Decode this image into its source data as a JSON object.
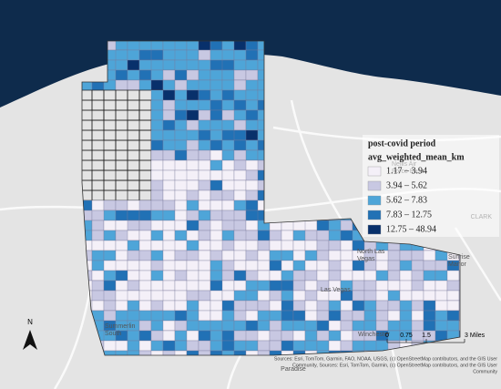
{
  "legend": {
    "title": "post-covid period",
    "field": "avg_weighted_mean_km",
    "classes": [
      {
        "label": "1.17 – 3.94",
        "color": "#f4f0f8"
      },
      {
        "label": "3.94 – 5.62",
        "color": "#c8c8e2"
      },
      {
        "label": "5.62 – 7.83",
        "color": "#4ea5d8"
      },
      {
        "label": "7.83 – 12.75",
        "color": "#2171b5"
      },
      {
        "label": "12.75 – 48.94",
        "color": "#08306b"
      }
    ]
  },
  "places": [
    {
      "lines": [
        "Nellis Air",
        "Force Base"
      ]
    },
    {
      "lines": [
        "North Las",
        "Vegas"
      ]
    },
    {
      "lines": [
        "Sunrise",
        "Manor"
      ]
    },
    {
      "lines": [
        "Las Vegas"
      ]
    },
    {
      "lines": [
        "Winchester"
      ]
    },
    {
      "lines": [
        "Paradise"
      ]
    },
    {
      "lines": [
        "Summerlin",
        "South"
      ]
    },
    {
      "lines": [
        "CLARK"
      ]
    }
  ],
  "north": "N",
  "scale": [
    "0",
    "0.75",
    "1.5",
    "3 Miles"
  ],
  "attribution": [
    "Sources: Esri, TomTom, Garmin, FAO, NOAA, USGS, (c) OpenStreetMap contributors, and the GIS User",
    "Community, Sources: Esri, TomTom, Garmin, (c) OpenStreetMap contributors, and the GIS User",
    "Community"
  ]
}
